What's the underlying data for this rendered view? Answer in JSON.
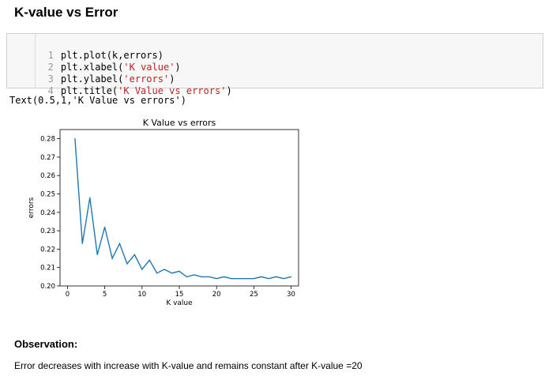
{
  "heading": "K-value vs Error",
  "code_cell": {
    "lines": [
      {
        "n": "1",
        "pre": "plt.plot(k,errors)",
        "str": "",
        "post": ""
      },
      {
        "n": "2",
        "pre": "plt.xlabel(",
        "str": "'K value'",
        "post": ")"
      },
      {
        "n": "3",
        "pre": "plt.ylabel(",
        "str": "'errors'",
        "post": ")"
      },
      {
        "n": "4",
        "pre": "plt.title(",
        "str": "'K Value vs errors'",
        "post": ")"
      }
    ]
  },
  "output_text": "Text(0.5,1,'K Value vs errors')",
  "chart_data": {
    "type": "line",
    "title": "K Value vs errors",
    "xlabel": "K value",
    "ylabel": "errors",
    "xlim": [
      -1,
      31
    ],
    "ylim": [
      0.2,
      0.285
    ],
    "xticks": [
      0,
      5,
      10,
      15,
      20,
      25,
      30
    ],
    "yticks": [
      0.2,
      0.21,
      0.22,
      0.23,
      0.24,
      0.25,
      0.26,
      0.27,
      0.28
    ],
    "grid": false,
    "line_color": "#1f77b4",
    "x": [
      1,
      2,
      3,
      4,
      5,
      6,
      7,
      8,
      9,
      10,
      11,
      12,
      13,
      14,
      15,
      16,
      17,
      18,
      19,
      20,
      21,
      22,
      23,
      24,
      25,
      26,
      27,
      28,
      29,
      30
    ],
    "y": [
      0.28,
      0.223,
      0.248,
      0.217,
      0.232,
      0.215,
      0.223,
      0.212,
      0.217,
      0.209,
      0.214,
      0.207,
      0.209,
      0.207,
      0.208,
      0.205,
      0.206,
      0.205,
      0.205,
      0.204,
      0.205,
      0.204,
      0.204,
      0.204,
      0.204,
      0.205,
      0.204,
      0.205,
      0.204,
      0.205
    ]
  },
  "observation": {
    "heading": "Observation:",
    "text": "Error decreases with increase with K-value and remains constant after K-value =20"
  }
}
